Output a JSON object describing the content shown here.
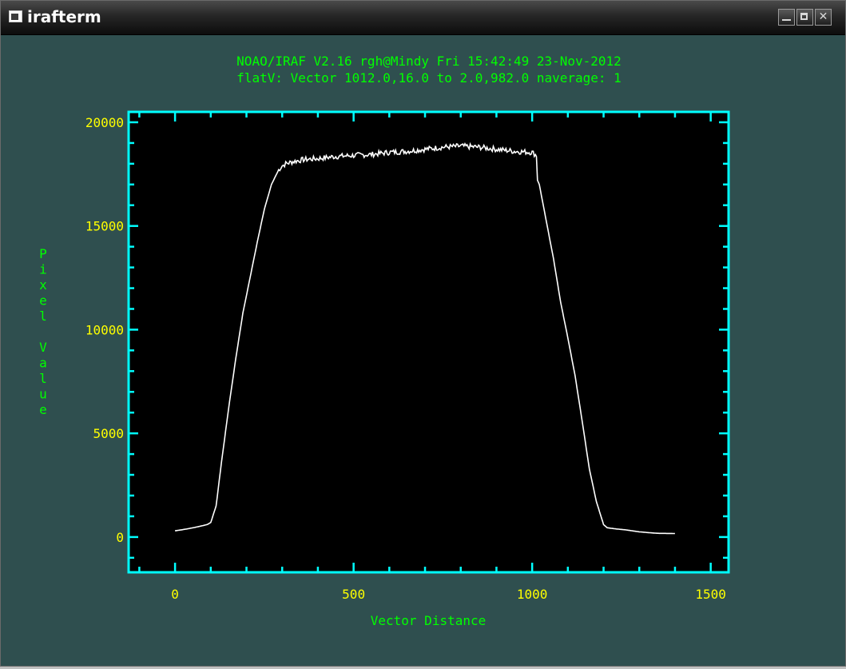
{
  "window": {
    "title": "irafterm",
    "controls": {
      "minimize_icon": "minimize-icon",
      "maximize_icon": "maximize-icon",
      "close_icon": "close-icon"
    }
  },
  "colors": {
    "background": "#2f4f4f",
    "plot_bg": "#000000",
    "frame": "#00ffff",
    "header_text": "#00ff00",
    "tick_labels": "#ffff00",
    "axis_labels": "#00ff00",
    "data_line": "#ffffff"
  },
  "plot": {
    "header_line1": "NOAO/IRAF V2.16 rgh@Mindy Fri 15:42:49 23-Nov-2012",
    "header_line2": "flatV: Vector 1012.0,16.0 to 2.0,982.0 naverage: 1"
  },
  "chart_data": {
    "type": "line",
    "title": "",
    "xlabel": "Vector Distance",
    "ylabel": "Pixel Value",
    "xlim": [
      -130,
      1550
    ],
    "ylim": [
      -1700,
      20500
    ],
    "x_ticks": [
      0,
      500,
      1000,
      1500
    ],
    "x_tick_labels": [
      "0",
      "500",
      "1000",
      "1500"
    ],
    "y_ticks": [
      0,
      5000,
      10000,
      15000,
      20000
    ],
    "y_tick_labels": [
      "0",
      "5000",
      "10000",
      "15000",
      "20000"
    ],
    "grid": false,
    "legend": "none",
    "series": [
      {
        "x": [
          0,
          30,
          60,
          90,
          100,
          115,
          130,
          150,
          170,
          190,
          210,
          230,
          250,
          270,
          290,
          300,
          310,
          330,
          360,
          400,
          450,
          500,
          550,
          600,
          650,
          700,
          750,
          800,
          850,
          900,
          950,
          1000,
          1012,
          1015,
          1020,
          1040,
          1060,
          1080,
          1100,
          1120,
          1140,
          1160,
          1180,
          1200,
          1210,
          1230,
          1260,
          1300,
          1350,
          1400
        ],
        "y": [
          300,
          380,
          480,
          600,
          700,
          1500,
          3600,
          6200,
          8600,
          10800,
          12500,
          14200,
          15800,
          17000,
          17700,
          17900,
          18000,
          18100,
          18200,
          18250,
          18350,
          18400,
          18450,
          18550,
          18600,
          18700,
          18800,
          18850,
          18800,
          18700,
          18600,
          18550,
          18400,
          17200,
          17000,
          15200,
          13400,
          11300,
          9600,
          7800,
          5600,
          3300,
          1700,
          600,
          450,
          400,
          350,
          250,
          180,
          170
        ]
      }
    ]
  }
}
